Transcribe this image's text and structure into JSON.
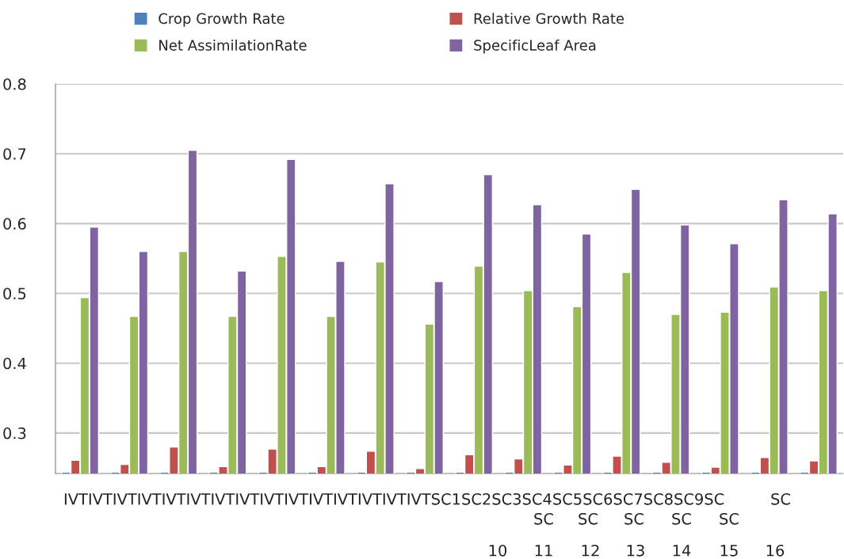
{
  "chart_data": {
    "type": "bar",
    "categories": [
      null,
      null,
      null,
      null,
      null,
      null,
      null,
      null,
      null,
      null,
      null,
      null,
      null,
      null,
      null,
      null
    ],
    "series": [
      {
        "name": "Crop Growth Rate",
        "color": "#4f81bd",
        "values": [
          0.244,
          0.244,
          0.244,
          0.244,
          0.244,
          0.244,
          0.244,
          0.244,
          0.244,
          0.244,
          0.244,
          0.244,
          0.244,
          0.244,
          0.244,
          0.244
        ]
      },
      {
        "name": "Relative Growth Rate",
        "color": "#c0504d",
        "values": [
          0.261,
          0.255,
          0.28,
          0.252,
          0.277,
          0.252,
          0.274,
          0.249,
          0.269,
          0.263,
          0.254,
          0.267,
          0.258,
          0.251,
          0.265,
          0.26
        ]
      },
      {
        "name": "Net AssimilationRate",
        "color": "#9bbb59",
        "values": [
          0.494,
          0.467,
          0.56,
          0.467,
          0.553,
          0.467,
          0.545,
          0.456,
          0.539,
          0.504,
          0.481,
          0.53,
          0.47,
          0.473,
          0.509,
          0.504
        ]
      },
      {
        "name": "SpecificLeaf Area",
        "color": "#8064a2",
        "values": [
          0.595,
          0.56,
          0.705,
          0.532,
          0.692,
          0.546,
          0.657,
          0.517,
          0.67,
          0.627,
          0.585,
          0.649,
          0.598,
          0.571,
          0.634,
          0.614
        ]
      }
    ],
    "ylim": [
      0.242,
      0.8
    ],
    "yticks": [
      0.3,
      0.4,
      0.5,
      0.6,
      0.7,
      0.8
    ],
    "grid": "y",
    "legend": "top",
    "annotations": [
      "IVTIVTIVTIVTIVTIVTIVTIVTIVTIVTIVTIVTIVTIVTIVTSC1SC2SC3SC4SC5SC6SC7SC8SC9SC",
      "SC",
      "SC",
      "SC",
      "SC",
      "SC",
      "SC",
      "10",
      "11",
      "12",
      "13",
      "14",
      "15",
      "16"
    ]
  }
}
